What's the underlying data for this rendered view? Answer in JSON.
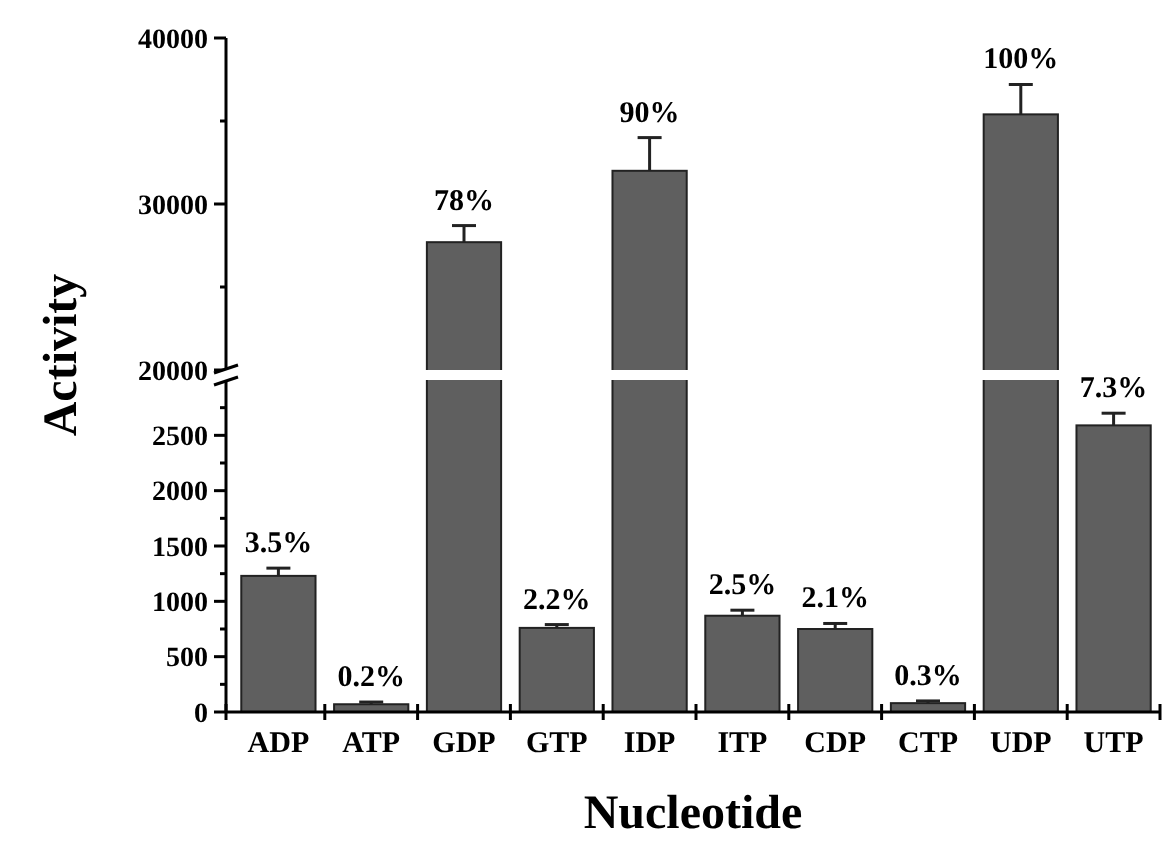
{
  "chart_data": [
    {
      "type": "bar",
      "categories": [
        "ADP",
        "ATP",
        "GDP",
        "GTP",
        "IDP",
        "ITP",
        "CDP",
        "CTP",
        "UDP",
        "UTP"
      ],
      "values": [
        null,
        null,
        27700,
        null,
        32000,
        null,
        null,
        null,
        35400,
        null
      ],
      "errors": [
        null,
        null,
        1000,
        null,
        2000,
        null,
        null,
        null,
        1800,
        null
      ],
      "annotations": [
        {
          "text": "78%",
          "x": "GDP",
          "y": 28700
        },
        {
          "text": "90%",
          "x": "IDP",
          "y": 34000
        },
        {
          "text": "100%",
          "x": "UDP",
          "y": 37200
        }
      ],
      "color": "#5f5f5f",
      "ylim": [
        20000,
        40000
      ],
      "yticks": [
        20000,
        {
          "value": 25000,
          "label": null
        },
        30000,
        {
          "value": 35000,
          "label": null
        },
        40000
      ],
      "tick_labels": "y",
      "grid": false
    },
    {
      "type": "bar",
      "categories": [
        "ADP",
        "ATP",
        "GDP",
        "GTP",
        "IDP",
        "ITP",
        "CDP",
        "CTP",
        "UDP",
        "UTP"
      ],
      "values": [
        1230,
        70,
        null,
        760,
        null,
        870,
        750,
        80,
        null,
        2590
      ],
      "errors": [
        70,
        20,
        null,
        30,
        null,
        50,
        50,
        20,
        null,
        110
      ],
      "annotations": [
        {
          "text": "3.5%",
          "x": "ADP",
          "y": 1300
        },
        {
          "text": "0.2%",
          "x": "ATP",
          "y": 90
        },
        {
          "text": "2.2%",
          "x": "GTP",
          "y": 790
        },
        {
          "text": "2.5%",
          "x": "ITP",
          "y": 920
        },
        {
          "text": "2.1%",
          "x": "CDP",
          "y": 800
        },
        {
          "text": "0.3%",
          "x": "CTP",
          "y": 100
        },
        {
          "text": "7.3%",
          "x": "UTP",
          "y": 2700
        }
      ],
      "color": "#5f5f5f",
      "ylim": [
        0,
        3000
      ],
      "yticks": [
        0,
        {
          "value": 250,
          "label": null
        },
        500,
        {
          "value": 750,
          "label": null
        },
        1000,
        {
          "value": 1250,
          "label": null
        },
        1500,
        {
          "value": 1750,
          "label": null
        },
        2000,
        {
          "value": 2250,
          "label": null
        },
        2500,
        {
          "value": 2750,
          "label": null
        }
      ],
      "xlabel": "Nucleotide",
      "ylabel": "Activity",
      "grid": false
    }
  ]
}
